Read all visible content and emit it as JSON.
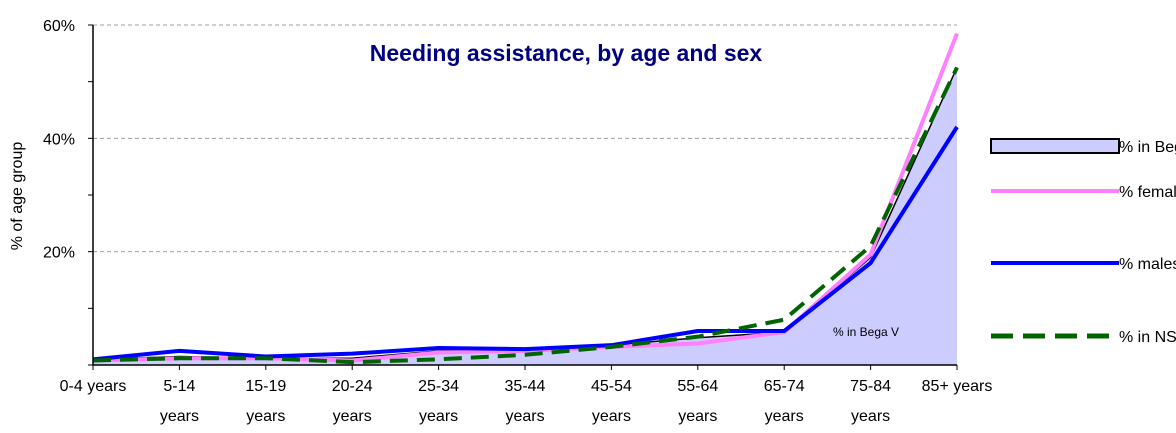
{
  "chart_data": {
    "type": "line",
    "title": "Needing assistance, by age and sex",
    "ylabel": "% of age group",
    "xlabel": "",
    "ylim": [
      0,
      60
    ],
    "ytick_values": [
      20,
      40,
      60
    ],
    "ytick_labels": [
      "20%",
      "40%",
      "60%"
    ],
    "grid": "horizontal dashed",
    "legend_position": "right",
    "categories": [
      [
        "0-4 years"
      ],
      [
        "5-14",
        "years"
      ],
      [
        "15-19",
        "years"
      ],
      [
        "20-24",
        "years"
      ],
      [
        "25-34",
        "years"
      ],
      [
        "35-44",
        "years"
      ],
      [
        "45-54",
        "years"
      ],
      [
        "55-64",
        "years"
      ],
      [
        "65-74",
        "years"
      ],
      [
        "75-84",
        "years"
      ],
      [
        "85+ years"
      ]
    ],
    "series": [
      {
        "name": "% in Bega V",
        "style": "area",
        "color": "#ccccff",
        "stroke": "#000000",
        "values": [
          1.0,
          1.5,
          1.2,
          1.2,
          2.5,
          2.8,
          3.5,
          4.8,
          5.8,
          19.0,
          52.5
        ]
      },
      {
        "name": "% females",
        "style": "line",
        "color": "#ff80ff",
        "values": [
          0.8,
          1.2,
          1.2,
          0.8,
          2.2,
          2.5,
          3.2,
          3.8,
          5.8,
          19.5,
          58.5
        ]
      },
      {
        "name": "% males",
        "style": "line",
        "color": "#0000ff",
        "values": [
          1.0,
          2.5,
          1.5,
          2.0,
          3.0,
          2.8,
          3.5,
          6.0,
          6.0,
          18.0,
          42.0
        ]
      },
      {
        "name": "% in NSW",
        "style": "dashed",
        "color": "#006400",
        "values": [
          0.8,
          1.2,
          1.2,
          0.5,
          1.0,
          1.8,
          3.2,
          5.0,
          8.0,
          21.0,
          52.5
        ]
      }
    ],
    "annotation": "% in Bega V"
  }
}
